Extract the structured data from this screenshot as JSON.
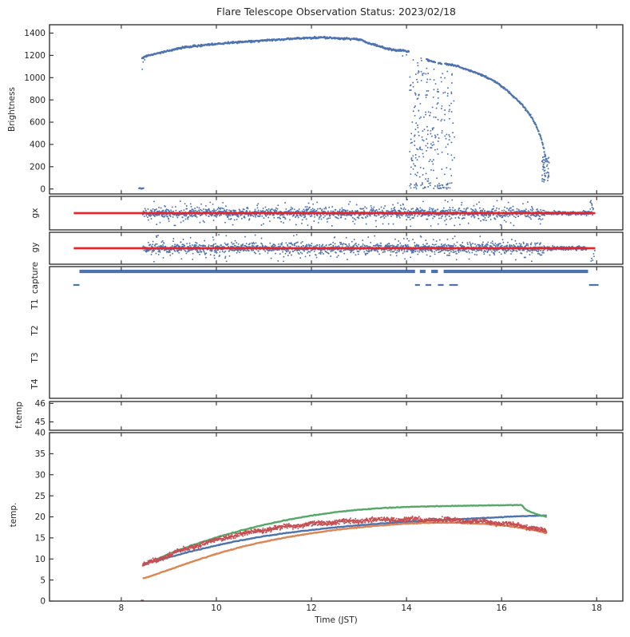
{
  "title": "Flare Telescope Observation Status: 2023/02/18",
  "xlabel": "Time (JST)",
  "x_ticks": [
    8,
    10,
    12,
    14,
    16,
    18
  ],
  "colors": {
    "scatter_blue": "#4c72b0",
    "line_red": "#e3262a",
    "temp_blue": "#4c72b0",
    "temp_orange": "#dd8452",
    "temp_green": "#55a868",
    "temp_red": "#c44e52",
    "frame": "#262626"
  },
  "chart_data": [
    {
      "id": "brightness",
      "type": "scatter",
      "ylabel": "Brightness",
      "ylim": [
        -45,
        1475
      ],
      "yticks": [
        0,
        200,
        400,
        600,
        800,
        1000,
        1200,
        1400
      ],
      "curve": [
        [
          8.44,
          1178
        ],
        [
          8.55,
          1196
        ],
        [
          8.7,
          1210
        ],
        [
          8.9,
          1232
        ],
        [
          9.1,
          1252
        ],
        [
          9.35,
          1272
        ],
        [
          9.6,
          1286
        ],
        [
          9.9,
          1298
        ],
        [
          10.2,
          1310
        ],
        [
          10.5,
          1318
        ],
        [
          10.8,
          1326
        ],
        [
          11.1,
          1336
        ],
        [
          11.4,
          1345
        ],
        [
          11.7,
          1352
        ],
        [
          12.0,
          1357
        ],
        [
          12.3,
          1360
        ],
        [
          12.5,
          1354
        ],
        [
          12.7,
          1350
        ],
        [
          12.9,
          1347
        ],
        [
          13.05,
          1338
        ],
        [
          13.2,
          1310
        ],
        [
          13.4,
          1285
        ],
        [
          13.6,
          1258
        ],
        [
          13.8,
          1246
        ],
        [
          13.95,
          1240
        ],
        [
          14.05,
          1236
        ]
      ],
      "curve2": [
        [
          14.42,
          1165
        ],
        [
          14.55,
          1142
        ],
        [
          14.68,
          1130
        ],
        [
          14.8,
          1124
        ],
        [
          14.95,
          1116
        ],
        [
          15.1,
          1098
        ],
        [
          15.3,
          1066
        ],
        [
          15.5,
          1038
        ],
        [
          15.7,
          1000
        ],
        [
          15.9,
          955
        ],
        [
          16.1,
          890
        ],
        [
          16.3,
          812
        ],
        [
          16.45,
          745
        ],
        [
          16.6,
          665
        ],
        [
          16.72,
          575
        ],
        [
          16.82,
          470
        ],
        [
          16.88,
          380
        ],
        [
          16.93,
          270
        ]
      ],
      "curve_gaps": [
        [
          14.6,
          14.66
        ],
        [
          14.74,
          14.8
        ]
      ],
      "clouds": [
        {
          "t0": 14.06,
          "t1": 14.38,
          "v0": 25,
          "v1": 1185,
          "n": 95
        },
        {
          "t0": 14.4,
          "t1": 14.68,
          "v0": 25,
          "v1": 1120,
          "n": 75
        },
        {
          "t0": 14.72,
          "t1": 15.02,
          "v0": 25,
          "v1": 1090,
          "n": 55
        },
        {
          "t0": 14.08,
          "t1": 14.98,
          "v0": 0,
          "v1": 55,
          "n": 45
        },
        {
          "t0": 16.84,
          "t1": 17.0,
          "v0": 55,
          "v1": 290,
          "n": 60
        },
        {
          "t0": 8.37,
          "t1": 8.47,
          "v0": 0,
          "v1": 10,
          "n": 16
        }
      ],
      "dots": [
        [
          8.44,
          1075
        ],
        [
          8.46,
          1140
        ],
        [
          8.49,
          1160
        ],
        [
          13.92,
          1195
        ],
        [
          14.0,
          1205
        ]
      ]
    },
    {
      "id": "gx",
      "type": "noise_band",
      "ylabel": "gx",
      "band": {
        "t0": 8.45,
        "t1": 16.92
      },
      "tail": {
        "t0": 16.92,
        "t1": 17.9
      },
      "hline": {
        "t0": 7.0,
        "t1": 17.97
      },
      "end_spike": {
        "t0": 17.86,
        "t1": 17.93,
        "n": 10
      }
    },
    {
      "id": "gy",
      "type": "noise_band",
      "ylabel": "gy",
      "band": {
        "t0": 8.45,
        "t1": 16.9
      },
      "tail": {
        "t0": 16.9,
        "t1": 17.8
      },
      "hline": {
        "t0": 7.0,
        "t1": 17.97
      },
      "end_drop": {
        "t0": 17.8,
        "t1": 17.97,
        "n": 6
      }
    },
    {
      "id": "capture",
      "type": "status",
      "ylabel": "capture",
      "row_labels": [
        "T1",
        "T2",
        "T3",
        "T4"
      ],
      "on_segments": [
        [
          7.12,
          14.18
        ],
        [
          14.28,
          14.4
        ],
        [
          14.52,
          14.66
        ],
        [
          14.78,
          17.82
        ]
      ],
      "off_segments": [
        [
          6.99,
          7.12
        ],
        [
          14.18,
          14.28
        ],
        [
          14.4,
          14.52
        ],
        [
          14.66,
          14.78
        ],
        [
          14.9,
          15.08
        ],
        [
          17.84,
          18.04
        ]
      ]
    },
    {
      "id": "ftemp",
      "type": "empty",
      "ylabel": "f.temp",
      "ylim": [
        44.55,
        46.1
      ],
      "yticks": [
        45,
        46
      ]
    },
    {
      "id": "temp",
      "type": "lines",
      "ylabel": "temp.",
      "ylim": [
        0,
        40
      ],
      "yticks": [
        0,
        5,
        10,
        15,
        20,
        25,
        30,
        35,
        40
      ],
      "series": [
        {
          "name": "temp-blue",
          "color_key": "temp_blue",
          "style": "line",
          "points": [
            [
              8.45,
              8.8
            ],
            [
              9,
              10.4
            ],
            [
              9.5,
              11.9
            ],
            [
              10,
              13.2
            ],
            [
              10.5,
              14.4
            ],
            [
              11,
              15.4
            ],
            [
              11.5,
              16.2
            ],
            [
              12,
              16.9
            ],
            [
              12.5,
              17.5
            ],
            [
              13,
              18.0
            ],
            [
              13.5,
              18.45
            ],
            [
              14,
              18.8
            ],
            [
              14.5,
              19.1
            ],
            [
              15,
              19.4
            ],
            [
              15.5,
              19.65
            ],
            [
              16,
              19.95
            ],
            [
              16.5,
              20.2
            ],
            [
              16.95,
              20.3
            ]
          ]
        },
        {
          "name": "temp-green",
          "color_key": "temp_green",
          "style": "line",
          "points": [
            [
              8.45,
              8.4
            ],
            [
              9,
              11.2
            ],
            [
              9.5,
              13.3
            ],
            [
              10,
              15.1
            ],
            [
              10.5,
              16.7
            ],
            [
              11,
              18.1
            ],
            [
              11.5,
              19.3
            ],
            [
              12,
              20.3
            ],
            [
              12.5,
              21.1
            ],
            [
              13,
              21.7
            ],
            [
              13.5,
              22.1
            ],
            [
              14,
              22.35
            ],
            [
              14.5,
              22.5
            ],
            [
              15,
              22.6
            ],
            [
              15.5,
              22.7
            ],
            [
              16,
              22.75
            ],
            [
              16.42,
              22.8
            ],
            [
              16.5,
              21.8
            ],
            [
              16.6,
              21.2
            ],
            [
              16.75,
              20.6
            ],
            [
              16.95,
              19.95
            ]
          ]
        },
        {
          "name": "temp-orange",
          "color_key": "temp_orange",
          "style": "line",
          "points": [
            [
              8.45,
              5.3
            ],
            [
              9,
              7.4
            ],
            [
              9.5,
              9.4
            ],
            [
              10,
              11.2
            ],
            [
              10.5,
              12.8
            ],
            [
              11,
              14.1
            ],
            [
              11.5,
              15.2
            ],
            [
              12,
              16.1
            ],
            [
              12.5,
              16.9
            ],
            [
              13,
              17.5
            ],
            [
              13.5,
              18.0
            ],
            [
              14,
              18.4
            ],
            [
              14.5,
              18.6
            ],
            [
              15,
              18.6
            ],
            [
              15.5,
              18.4
            ],
            [
              16,
              18.0
            ],
            [
              16.4,
              17.4
            ],
            [
              16.7,
              16.8
            ],
            [
              16.95,
              16.1
            ]
          ]
        },
        {
          "name": "temp-red",
          "color_key": "temp_red",
          "style": "scatter",
          "noise": 0.28,
          "points": [
            [
              8.45,
              8.6
            ],
            [
              9,
              10.9
            ],
            [
              9.5,
              12.9
            ],
            [
              10,
              14.5
            ],
            [
              10.5,
              15.9
            ],
            [
              11,
              16.9
            ],
            [
              11.5,
              17.7
            ],
            [
              12,
              18.3
            ],
            [
              12.5,
              18.8
            ],
            [
              13,
              19.1
            ],
            [
              13.5,
              19.3
            ],
            [
              14,
              19.4
            ],
            [
              14.5,
              19.35
            ],
            [
              15,
              19.2
            ],
            [
              15.5,
              18.95
            ],
            [
              16,
              18.5
            ],
            [
              16.4,
              17.95
            ],
            [
              16.7,
              17.3
            ],
            [
              16.95,
              16.5
            ]
          ],
          "zero_dots": {
            "t0": 8.39,
            "t1": 8.46,
            "n": 6
          }
        }
      ]
    }
  ]
}
